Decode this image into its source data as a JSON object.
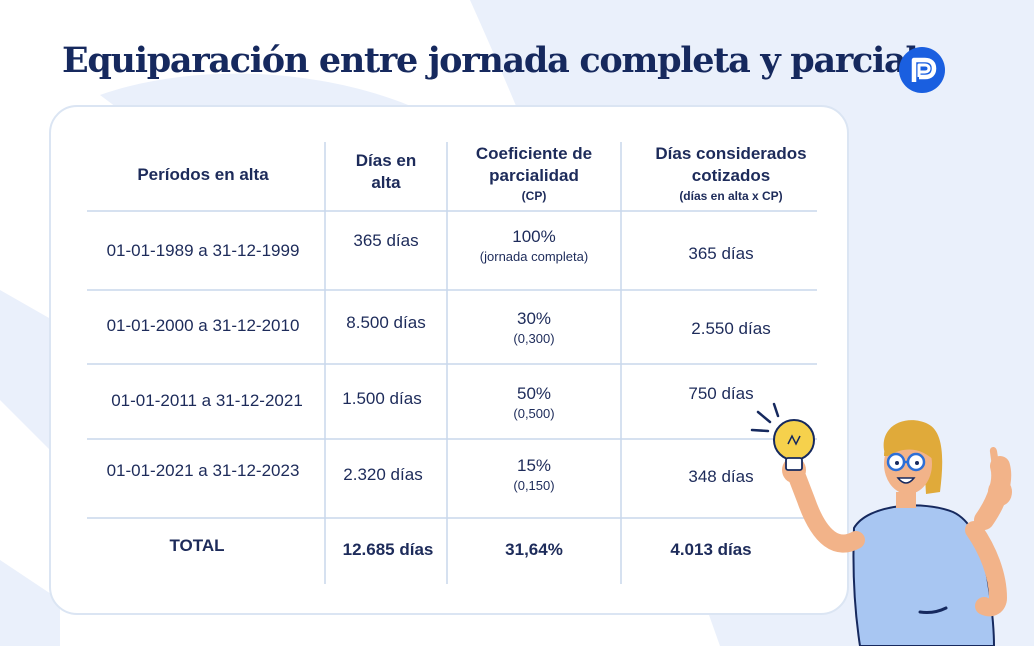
{
  "title": "Equiparación entre jornada completa y parcial",
  "logo": {
    "icon": "p-logo-icon",
    "color": "#1a5fe0"
  },
  "colors": {
    "navy": "#16295e",
    "accent": "#1a5fe0",
    "background_shape": "#eaf0fb",
    "table_line": "#c9d7ec"
  },
  "table": {
    "headers": {
      "periodos": "Períodos en alta",
      "dias_line1": "Días en",
      "dias_line2": "alta",
      "coef_line1": "Coeficiente de",
      "coef_line2": "parcialidad",
      "coef_sub": "(CP)",
      "cons_line1": "Días considerados",
      "cons_line2": "cotizados",
      "cons_sub": "(días en alta x CP)"
    },
    "rows": [
      {
        "periodo": "01-01-1989 a 31-12-1999",
        "dias": "365 días",
        "coef": "100%",
        "coef_sub": "(jornada completa)",
        "considerados": "365 días"
      },
      {
        "periodo": "01-01-2000 a 31-12-2010",
        "dias": "8.500 días",
        "coef": "30%",
        "coef_sub": "(0,300)",
        "considerados": "2.550 días"
      },
      {
        "periodo": "01-01-2011 a 31-12-2021",
        "dias": "1.500 días",
        "coef": "50%",
        "coef_sub": "(0,500)",
        "considerados": "750 días"
      },
      {
        "periodo": "01-01-2021 a 31-12-2023",
        "dias": "2.320 días",
        "coef": "15%",
        "coef_sub": "(0,150)",
        "considerados": "348 días"
      }
    ],
    "total": {
      "label": "TOTAL",
      "dias": "12.685 días",
      "coef": "31,64%",
      "considerados": "4.013 días"
    }
  },
  "illustration": {
    "icon": "woman-with-lightbulb-icon"
  }
}
